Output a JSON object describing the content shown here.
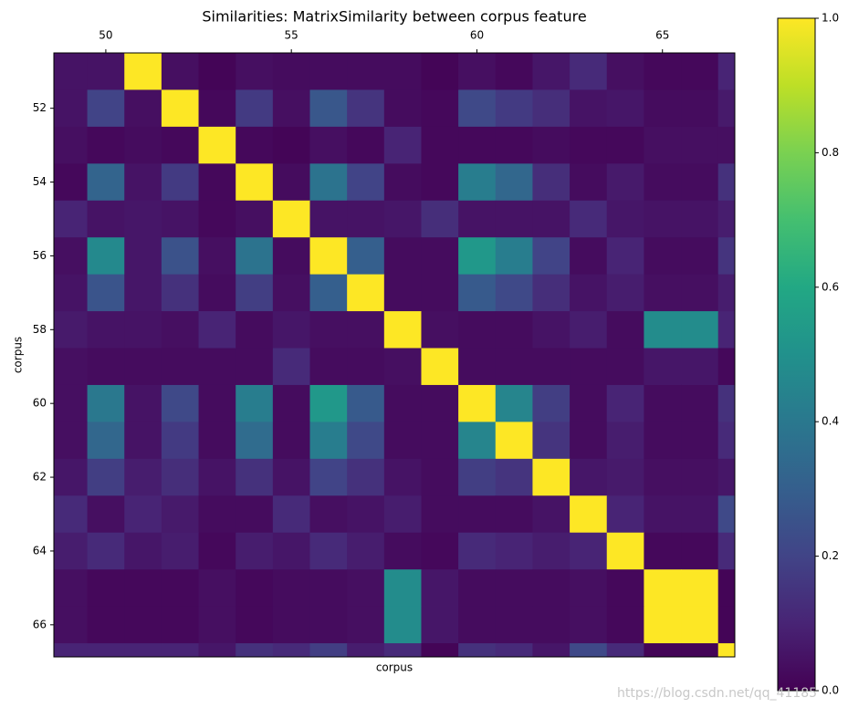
{
  "chart_data": {
    "type": "heatmap",
    "title": "Similarities: MatrixSimilarity between corpus feature",
    "xlabel": "corpus",
    "ylabel": "corpus",
    "colormap": "viridis",
    "x": [
      49,
      50,
      51,
      52,
      53,
      54,
      55,
      56,
      57,
      58,
      59,
      60,
      61,
      62,
      63,
      64,
      65,
      66,
      67
    ],
    "y": [
      51,
      52,
      53,
      54,
      55,
      56,
      57,
      58,
      59,
      60,
      61,
      62,
      63,
      64,
      65,
      66,
      67
    ],
    "values": [
      [
        0.05,
        0.05,
        1,
        0.04,
        0.01,
        0.04,
        0.03,
        0.03,
        0.03,
        0.03,
        0.01,
        0.04,
        0.02,
        0.06,
        0.12,
        0.04,
        0.02,
        0.02,
        0.1
      ],
      [
        0.05,
        0.2,
        0.04,
        1,
        0.02,
        0.17,
        0.04,
        0.27,
        0.15,
        0.03,
        0.02,
        0.22,
        0.17,
        0.13,
        0.05,
        0.06,
        0.03,
        0.03,
        0.07
      ],
      [
        0.04,
        0.02,
        0.03,
        0.02,
        1,
        0.02,
        0.01,
        0.04,
        0.02,
        0.1,
        0.02,
        0.02,
        0.02,
        0.03,
        0.02,
        0.02,
        0.04,
        0.04,
        0.04
      ],
      [
        0.02,
        0.32,
        0.05,
        0.17,
        0.02,
        1,
        0.03,
        0.38,
        0.2,
        0.03,
        0.02,
        0.42,
        0.33,
        0.13,
        0.03,
        0.07,
        0.03,
        0.03,
        0.14
      ],
      [
        0.1,
        0.05,
        0.06,
        0.05,
        0.02,
        0.04,
        1,
        0.05,
        0.05,
        0.06,
        0.13,
        0.05,
        0.05,
        0.05,
        0.12,
        0.06,
        0.05,
        0.05,
        0.08
      ],
      [
        0.04,
        0.47,
        0.06,
        0.25,
        0.04,
        0.38,
        0.03,
        1,
        0.3,
        0.03,
        0.03,
        0.53,
        0.42,
        0.2,
        0.03,
        0.1,
        0.03,
        0.03,
        0.15
      ],
      [
        0.05,
        0.26,
        0.06,
        0.14,
        0.03,
        0.18,
        0.04,
        0.3,
        1,
        0.03,
        0.03,
        0.28,
        0.22,
        0.13,
        0.05,
        0.08,
        0.04,
        0.04,
        0.08
      ],
      [
        0.07,
        0.05,
        0.05,
        0.04,
        0.1,
        0.03,
        0.06,
        0.04,
        0.04,
        1,
        0.04,
        0.03,
        0.03,
        0.05,
        0.08,
        0.03,
        0.48,
        0.48,
        0.1
      ],
      [
        0.04,
        0.03,
        0.03,
        0.03,
        0.03,
        0.03,
        0.12,
        0.03,
        0.03,
        0.04,
        1,
        0.03,
        0.03,
        0.03,
        0.03,
        0.03,
        0.06,
        0.06,
        0.02
      ],
      [
        0.04,
        0.4,
        0.05,
        0.22,
        0.03,
        0.42,
        0.03,
        0.53,
        0.28,
        0.03,
        0.03,
        1,
        0.45,
        0.18,
        0.03,
        0.1,
        0.03,
        0.03,
        0.14
      ],
      [
        0.04,
        0.33,
        0.05,
        0.17,
        0.03,
        0.35,
        0.03,
        0.42,
        0.22,
        0.03,
        0.03,
        0.45,
        1,
        0.15,
        0.03,
        0.08,
        0.03,
        0.03,
        0.12
      ],
      [
        0.06,
        0.18,
        0.08,
        0.13,
        0.05,
        0.14,
        0.05,
        0.2,
        0.14,
        0.05,
        0.03,
        0.18,
        0.15,
        1,
        0.06,
        0.07,
        0.04,
        0.04,
        0.06
      ],
      [
        0.12,
        0.04,
        0.1,
        0.07,
        0.03,
        0.03,
        0.12,
        0.04,
        0.05,
        0.08,
        0.03,
        0.03,
        0.03,
        0.05,
        1,
        0.1,
        0.05,
        0.05,
        0.22
      ],
      [
        0.08,
        0.12,
        0.06,
        0.08,
        0.02,
        0.08,
        0.06,
        0.12,
        0.08,
        0.03,
        0.02,
        0.12,
        0.1,
        0.08,
        0.1,
        1,
        0.02,
        0.02,
        0.12
      ],
      [
        0.04,
        0.02,
        0.02,
        0.02,
        0.04,
        0.02,
        0.03,
        0.03,
        0.04,
        0.48,
        0.06,
        0.03,
        0.03,
        0.03,
        0.04,
        0.02,
        1,
        1,
        0.01
      ],
      [
        0.04,
        0.02,
        0.02,
        0.02,
        0.04,
        0.02,
        0.03,
        0.03,
        0.04,
        0.48,
        0.06,
        0.03,
        0.03,
        0.03,
        0.04,
        0.02,
        1,
        1,
        0.01
      ],
      [
        0.1,
        0.1,
        0.1,
        0.1,
        0.06,
        0.14,
        0.12,
        0.18,
        0.08,
        0.12,
        0.01,
        0.14,
        0.12,
        0.06,
        0.22,
        0.12,
        0.01,
        0.01,
        1
      ]
    ],
    "xlim": [
      48.6,
      66.95
    ],
    "ylim": [
      66.87,
      50.5
    ],
    "xticks": [
      50,
      55,
      60,
      65
    ],
    "yticks": [
      52,
      54,
      56,
      58,
      60,
      62,
      64,
      66
    ],
    "clim": [
      0,
      1
    ],
    "cticks": [
      {
        "value": 0,
        "label": "0.0"
      },
      0.2,
      0.4,
      0.6,
      0.8,
      {
        "value": 1,
        "label": "1.0"
      }
    ],
    "watermark": "https://blog.csdn.net/qq_41185"
  }
}
